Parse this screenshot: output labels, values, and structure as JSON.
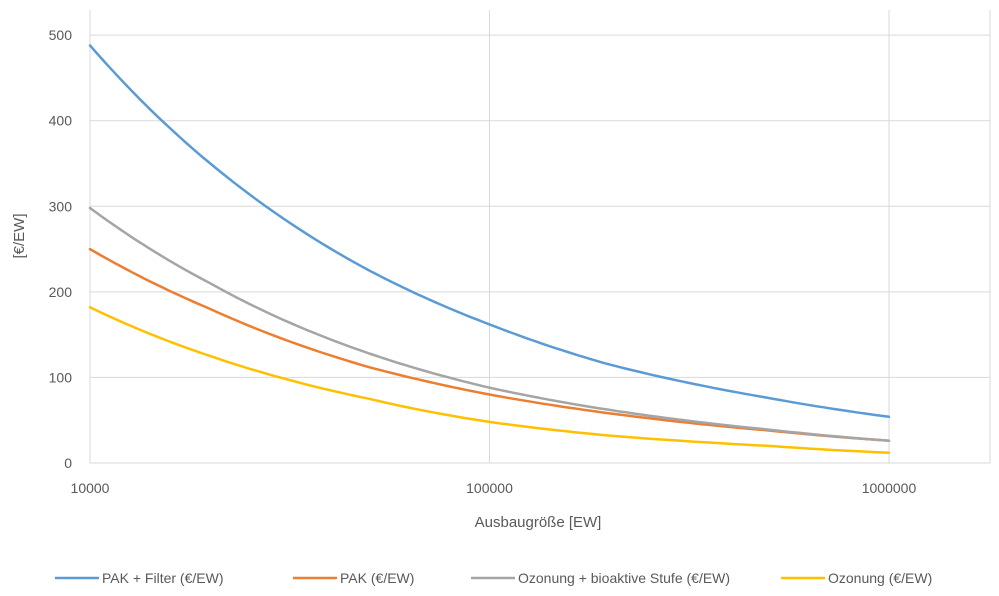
{
  "chart_data": {
    "type": "line",
    "x_scale": "log",
    "grid": true,
    "xlabel": "Ausbaugröße [EW]",
    "ylabel": "[€/EW]",
    "xlim": [
      10000,
      2000000
    ],
    "ylim": [
      0,
      520
    ],
    "x_ticks": [
      "10000",
      "100000",
      "1000000"
    ],
    "y_ticks": [
      "0",
      "100",
      "200",
      "300",
      "400",
      "500"
    ],
    "legend_position": "bottom",
    "series": [
      {
        "name": "PAK + Filter (€/EW)",
        "color": "#5b9bd5",
        "x": [
          10000,
          20000,
          50000,
          100000,
          200000,
          500000,
          1000000
        ],
        "y": [
          488,
          350,
          225,
          162,
          115,
          76,
          54
        ]
      },
      {
        "name": "PAK (€/EW)",
        "color": "#ed7d31",
        "x": [
          10000,
          20000,
          50000,
          100000,
          200000,
          500000,
          1000000
        ],
        "y": [
          250,
          180,
          112,
          80,
          58,
          38,
          26
        ]
      },
      {
        "name": "Ozonung + bioaktive Stufe (€/EW)",
        "color": "#a5a5a5",
        "x": [
          10000,
          20000,
          50000,
          100000,
          200000,
          500000,
          1000000
        ],
        "y": [
          298,
          210,
          128,
          88,
          62,
          39,
          26
        ]
      },
      {
        "name": "Ozonung (€/EW)",
        "color": "#ffc000",
        "x": [
          10000,
          20000,
          50000,
          100000,
          200000,
          500000,
          1000000
        ],
        "y": [
          182,
          125,
          75,
          48,
          32,
          20,
          12
        ]
      }
    ]
  }
}
